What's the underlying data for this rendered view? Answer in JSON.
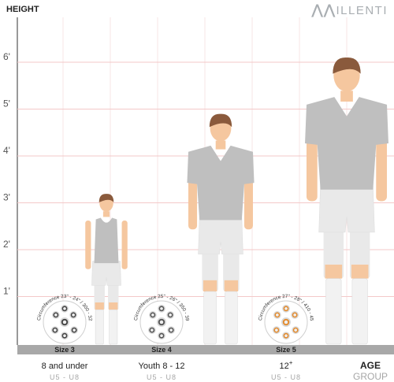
{
  "header": {
    "title": "HEIGHT"
  },
  "brand": {
    "text": "MILLENTI",
    "color": "#a9aeb2"
  },
  "axis": {
    "ticks": [
      "6'",
      "5'",
      "4'",
      "3'",
      "2'",
      "1'"
    ],
    "grid_color": "#f3c9c9"
  },
  "groups": [
    {
      "id": "u8",
      "ball_size": "Size 3",
      "ball_spec": "Circumference 23\" - 24\" / 300 - 320 grams",
      "age": "8 and under",
      "age_sup": "",
      "league": "U5 - U8",
      "height_ft": 3.2,
      "accent": "#444444"
    },
    {
      "id": "youth",
      "ball_size": "Size 4",
      "ball_spec": "Circumference 25\" - 26\" / 350 - 390 grams",
      "age": "Youth 8 - 12",
      "age_sup": "",
      "league": "U5 - U8",
      "height_ft": 4.9,
      "accent": "#555555"
    },
    {
      "id": "adult",
      "ball_size": "Size 5",
      "ball_spec": "Circumference 27\" - 28\" / 410 - 450 grams",
      "age": "12",
      "age_sup": "+",
      "league": "U5 - U8",
      "height_ft": 6.1,
      "accent": "#e38a2c"
    }
  ],
  "legend": {
    "line1": "AGE",
    "line2": "GROUP"
  },
  "colors": {
    "skin": "#f5c79f",
    "hair": "#8a5a3c",
    "shirt": "#bfbfbf",
    "shorts": "#e9e9e9",
    "ground": "#a8a8a8",
    "label_dark": "#222222",
    "label_grey": "#a6a6a6"
  }
}
